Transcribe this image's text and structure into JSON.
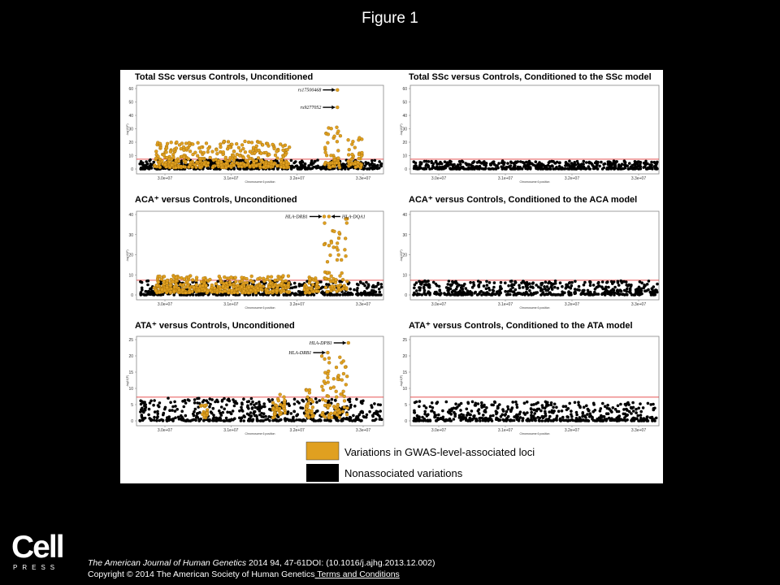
{
  "slide": {
    "title": "Figure 1"
  },
  "logo": {
    "word": "Cell",
    "sub": "PRESS"
  },
  "citation": {
    "journal": "The American Journal of Human Genetics",
    "details": " 2014 94, 47-61DOI: (10.1016/j.ajhg.2013.12.002)",
    "copyright": "Copyright © 2014 The American Society of Human Genetics",
    "terms_link": " Terms and Conditions"
  },
  "legend": {
    "associated": "Variations in GWAS-level-associated loci",
    "nonassociated": "Nonassociated variations"
  },
  "colors": {
    "associated": "#E0A020",
    "associated_edge": "#8a5a00",
    "nonassociated": "#000000",
    "threshold": "#e33b3b"
  },
  "chart_data": [
    {
      "type": "scatter",
      "title": "Total SSc versus Controls, Unconditioned",
      "xlabel": "Chromosome 6 position",
      "ylabel": "-log10(P)",
      "xticks": [
        "3.0e+07",
        "3.1e+07",
        "3.2e+07",
        "3.3e+07"
      ],
      "yticks": [
        "0",
        "10",
        "20",
        "30",
        "40",
        "50",
        "60"
      ],
      "ylim": [
        0,
        60
      ],
      "threshold": 7.3,
      "annotations": [
        {
          "label": "rs17500468",
          "y": 59
        },
        {
          "label": "rs9277052",
          "y": 46
        }
      ],
      "series": [
        {
          "name": "Variations in GWAS-level-associated loci",
          "max_y": 59
        },
        {
          "name": "Nonassociated variations",
          "max_y": 7
        }
      ]
    },
    {
      "type": "scatter",
      "title": "Total SSc versus Controls, Conditioned to the SSc model",
      "xlabel": "Chromosome 6 position",
      "ylabel": "-log10(P)",
      "xticks": [
        "3.0e+07",
        "3.1e+07",
        "3.2e+07",
        "3.3e+07"
      ],
      "yticks": [
        "0",
        "10",
        "20",
        "30",
        "40",
        "50",
        "60"
      ],
      "ylim": [
        0,
        60
      ],
      "threshold": 7.3,
      "series": [
        {
          "name": "Nonassociated variations",
          "max_y": 6
        }
      ]
    },
    {
      "type": "scatter",
      "title": "ACA⁺ versus Controls, Unconditioned",
      "xlabel": "Chromosome 6 position",
      "ylabel": "-log10(P)",
      "xticks": [
        "3.0e+07",
        "3.1e+07",
        "3.2e+07",
        "3.3e+07"
      ],
      "yticks": [
        "0",
        "10",
        "20",
        "30",
        "40"
      ],
      "ylim": [
        0,
        40
      ],
      "threshold": 7.3,
      "annotations": [
        {
          "label": "HLA-DRB1",
          "y": 39
        },
        {
          "label": "HLA-DQA1",
          "y": 39
        }
      ],
      "series": [
        {
          "name": "Variations in GWAS-level-associated loci",
          "max_y": 39
        },
        {
          "name": "Nonassociated variations",
          "max_y": 7
        }
      ]
    },
    {
      "type": "scatter",
      "title": "ACA⁺ versus Controls, Conditioned to the ACA model",
      "xlabel": "Chromosome 6 position",
      "ylabel": "-log10(P)",
      "xticks": [
        "3.0e+07",
        "3.1e+07",
        "3.2e+07",
        "3.3e+07"
      ],
      "yticks": [
        "0",
        "10",
        "20",
        "30",
        "40"
      ],
      "ylim": [
        0,
        40
      ],
      "threshold": 7.3,
      "series": [
        {
          "name": "Nonassociated variations",
          "max_y": 7
        }
      ]
    },
    {
      "type": "scatter",
      "title": "ATA⁺ versus Controls, Unconditioned",
      "xlabel": "Chromosome 6 position",
      "ylabel": "-log10(P)",
      "xticks": [
        "3.0e+07",
        "3.1e+07",
        "3.2e+07",
        "3.3e+07"
      ],
      "yticks": [
        "0",
        "5",
        "10",
        "15",
        "20",
        "25"
      ],
      "ylim": [
        0,
        25
      ],
      "threshold": 7.3,
      "annotations": [
        {
          "label": "HLA-DRB1",
          "y": 21
        },
        {
          "label": "HLA-DPB1",
          "y": 24
        }
      ],
      "series": [
        {
          "name": "Variations in GWAS-level-associated loci",
          "max_y": 24
        },
        {
          "name": "Nonassociated variations",
          "max_y": 7
        }
      ]
    },
    {
      "type": "scatter",
      "title": "ATA⁺ versus Controls, Conditioned to the ATA model",
      "xlabel": "Chromosome 6 position",
      "ylabel": "-log10(P)",
      "xticks": [
        "3.0e+07",
        "3.1e+07",
        "3.2e+07",
        "3.3e+07"
      ],
      "yticks": [
        "0",
        "5",
        "10",
        "15",
        "20",
        "25"
      ],
      "ylim": [
        0,
        25
      ],
      "threshold": 7.3,
      "series": [
        {
          "name": "Nonassociated variations",
          "max_y": 6
        }
      ]
    }
  ]
}
